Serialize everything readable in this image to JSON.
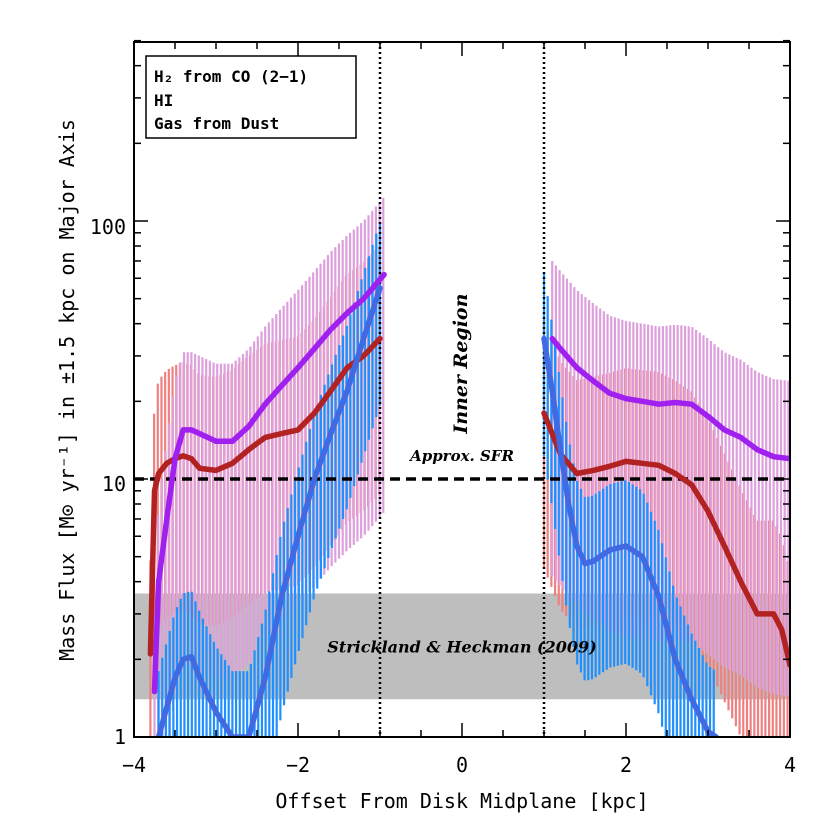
{
  "chart_data": {
    "type": "line",
    "xlabel": "Offset From Disk Midplane [kpc]",
    "ylabel": "Mass Flux [M⊙ yr⁻¹] in ±1.5 kpc on Major Axis",
    "xlim": [
      -4,
      4
    ],
    "ylim": [
      1,
      500
    ],
    "yscale": "log",
    "x_ticks": [
      -4,
      -2,
      0,
      2,
      4
    ],
    "x_tick_labels": [
      "−4",
      "−2",
      "0",
      "2",
      "4"
    ],
    "y_ticks": [
      1,
      10,
      100
    ],
    "y_tick_labels": [
      "1",
      "10",
      "100"
    ],
    "legend_position": "top-left",
    "series": [
      {
        "name": "H₂ from CO (2−1)",
        "color": "#4169e1",
        "errcolor": "#1e90ff",
        "segments": [
          {
            "x": [
              -3.7,
              -3.5,
              -3.4,
              -3.3,
              -3.2,
              -3.0,
              -2.8,
              -2.6,
              -2.4,
              -2.2,
              -2.0,
              -1.8,
              -1.6,
              -1.4,
              -1.2,
              -1.0
            ],
            "y": [
              1.0,
              1.7,
              2.0,
              2.05,
              1.7,
              1.25,
              1.0,
              1.0,
              1.7,
              3.5,
              6.0,
              10.0,
              15.0,
              22.0,
              35.0,
              55.0
            ]
          },
          {
            "x": [
              1.0,
              1.1,
              1.2,
              1.3,
              1.4,
              1.5,
              1.6,
              1.8,
              2.0,
              2.2,
              2.4,
              2.6,
              2.8,
              3.0,
              3.1
            ],
            "y": [
              35.0,
              22.0,
              13.0,
              8.0,
              5.5,
              4.7,
              4.8,
              5.3,
              5.5,
              5.0,
              3.5,
              2.0,
              1.4,
              1.05,
              1.0
            ]
          }
        ],
        "err_low_factor": 0.35,
        "err_high_factor": 1.8
      },
      {
        "name": "HI",
        "color": "#b22222",
        "errcolor": "#f08080",
        "segments": [
          {
            "x": [
              -3.8,
              -3.75,
              -3.7,
              -3.6,
              -3.5,
              -3.4,
              -3.3,
              -3.2,
              -3.0,
              -2.8,
              -2.6,
              -2.4,
              -2.2,
              -2.0,
              -1.8,
              -1.6,
              -1.4,
              -1.2,
              -1.0
            ],
            "y": [
              2.1,
              9.0,
              10.5,
              11.5,
              12.0,
              12.3,
              12.0,
              11.0,
              10.8,
              11.5,
              13.0,
              14.5,
              15.0,
              15.5,
              18.0,
              22.0,
              27.0,
              30.0,
              35.0
            ]
          },
          {
            "x": [
              1.0,
              1.1,
              1.2,
              1.4,
              1.6,
              1.8,
              2.0,
              2.2,
              2.4,
              2.6,
              2.8,
              3.0,
              3.2,
              3.4,
              3.6,
              3.8,
              3.9,
              4.0
            ],
            "y": [
              18.0,
              15.0,
              12.5,
              10.5,
              10.8,
              11.2,
              11.7,
              11.5,
              11.3,
              10.5,
              9.5,
              7.5,
              5.5,
              4.0,
              3.0,
              3.0,
              2.6,
              1.9
            ]
          }
        ],
        "err_low_factor": 0.25,
        "err_high_factor": 2.3
      },
      {
        "name": "Gas from Dust",
        "color": "#a020f0",
        "errcolor": "#dda0dd",
        "segments": [
          {
            "x": [
              -3.75,
              -3.7,
              -3.6,
              -3.5,
              -3.4,
              -3.3,
              -3.2,
              -3.0,
              -2.8,
              -2.6,
              -2.4,
              -2.2,
              -2.0,
              -1.8,
              -1.6,
              -1.4,
              -1.2,
              -0.95
            ],
            "y": [
              1.5,
              4.0,
              7.0,
              12.0,
              15.5,
              15.5,
              15.0,
              14.0,
              14.0,
              16.0,
              19.5,
              23.0,
              27.0,
              32.0,
              38.0,
              44.0,
              50.0,
              62.0
            ]
          },
          {
            "x": [
              1.1,
              1.2,
              1.4,
              1.6,
              1.8,
              2.0,
              2.2,
              2.4,
              2.6,
              2.8,
              3.0,
              3.2,
              3.4,
              3.6,
              3.8,
              4.0
            ],
            "y": [
              35.0,
              32.0,
              27.0,
              24.0,
              21.5,
              20.5,
              20.0,
              19.5,
              19.8,
              19.5,
              17.5,
              15.5,
              14.5,
              13.0,
              12.2,
              12.0
            ]
          }
        ],
        "err_low_factor": 0.12,
        "err_high_factor": 2.0
      }
    ],
    "annotations": {
      "sfr_label": "Approx. SFR",
      "sfr_value": 10,
      "inner_region_label": "Inner Region",
      "inner_region_bounds": [
        -1,
        1
      ],
      "shaded_label": "Strickland & Heckman (2009)",
      "shaded_range": [
        1.4,
        3.6
      ]
    }
  }
}
